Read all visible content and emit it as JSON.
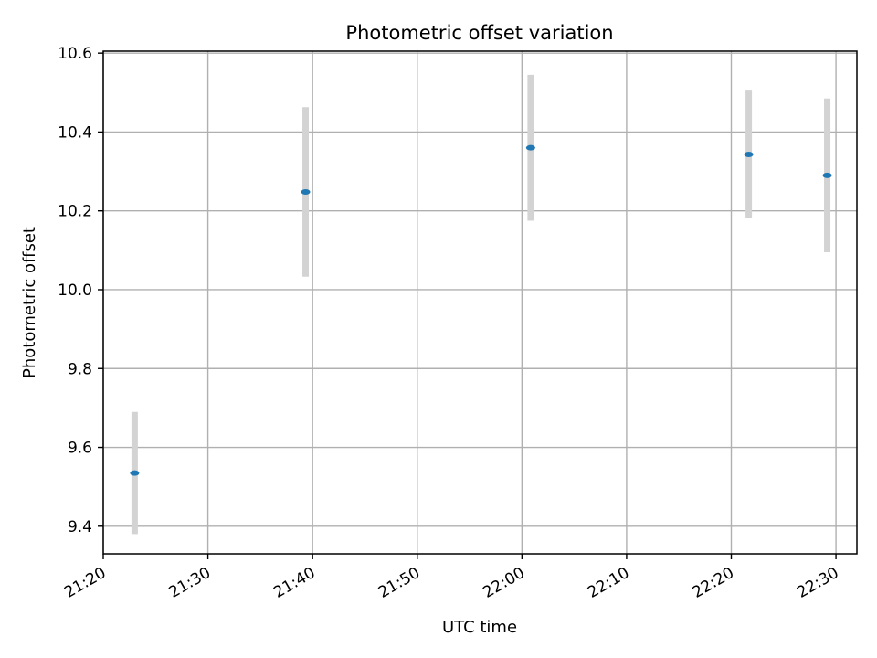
{
  "chart_data": {
    "type": "scatter",
    "title": "Photometric offset variation",
    "xlabel": "UTC time",
    "ylabel": "Photometric offset",
    "x_axis_type": "time",
    "xlim": [
      "21:20",
      "22:32"
    ],
    "ylim": [
      9.33,
      10.605
    ],
    "x_ticks": [
      "21:20",
      "21:30",
      "21:40",
      "21:50",
      "22:00",
      "22:10",
      "22:20",
      "22:30"
    ],
    "y_ticks": [
      "9.4",
      "9.6",
      "9.8",
      "10.0",
      "10.2",
      "10.4",
      "10.6"
    ],
    "grid": true,
    "point_color": "#1f77b4",
    "errorbar_color": "#d3d3d3",
    "points": [
      {
        "x": "21:23:00",
        "y": 9.535,
        "yerr": 0.155
      },
      {
        "x": "21:39:20",
        "y": 10.248,
        "yerr": 0.215
      },
      {
        "x": "22:00:50",
        "y": 10.36,
        "yerr": 0.185
      },
      {
        "x": "22:21:40",
        "y": 10.343,
        "yerr": 0.162
      },
      {
        "x": "22:29:10",
        "y": 10.29,
        "yerr": 0.195
      }
    ]
  }
}
